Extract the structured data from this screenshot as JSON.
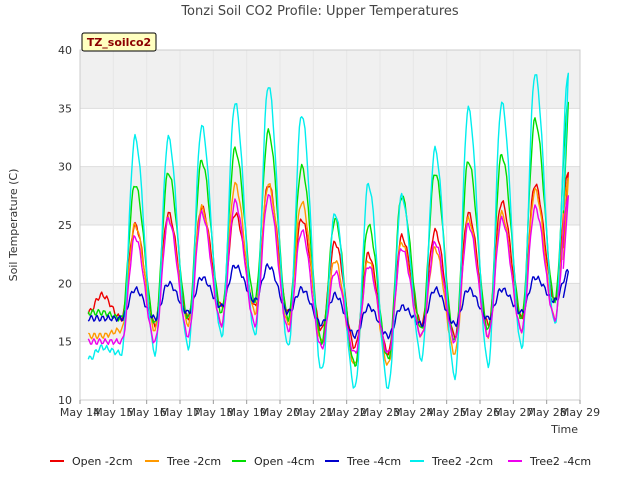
{
  "chart_data": {
    "type": "line",
    "title": "Tonzi Soil CO2 Profile: Upper Temperatures",
    "xlabel": "Time",
    "ylabel": "Soil Temperature (C)",
    "site_tag": "TZ_soilco2",
    "xlim": [
      14,
      29
    ],
    "ylim": [
      10,
      40
    ],
    "yticks": [
      10,
      15,
      20,
      25,
      30,
      35,
      40
    ],
    "xticks": [
      {
        "x": 14,
        "label": "May 14"
      },
      {
        "x": 15,
        "label": "May 15"
      },
      {
        "x": 16,
        "label": "May 16"
      },
      {
        "x": 17,
        "label": "May 17"
      },
      {
        "x": 18,
        "label": "May 18"
      },
      {
        "x": 19,
        "label": "May 19"
      },
      {
        "x": 20,
        "label": "May 20"
      },
      {
        "x": 21,
        "label": "May 21"
      },
      {
        "x": 22,
        "label": "May 22"
      },
      {
        "x": 23,
        "label": "May 23"
      },
      {
        "x": 24,
        "label": "May 24"
      },
      {
        "x": 25,
        "label": "May 25"
      },
      {
        "x": 26,
        "label": "May 26"
      },
      {
        "x": 27,
        "label": "May 27"
      },
      {
        "x": 28,
        "label": "May 28"
      },
      {
        "x": 29,
        "label": "May 29"
      }
    ],
    "grid": true,
    "legend_position": "bottom",
    "series": [
      {
        "name": "Open -2cm",
        "color": "#ee0000",
        "days": [
          14,
          15,
          16,
          17,
          18,
          19,
          20,
          21,
          22,
          23,
          24,
          25,
          26,
          27,
          28
        ],
        "mins": [
          17.5,
          17.0,
          16.5,
          17.0,
          18.0,
          18.0,
          17.5,
          16.0,
          14.5,
          14.0,
          16.5,
          15.5,
          16.5,
          17.0,
          18.5
        ],
        "maxs": [
          19.0,
          25.0,
          26.0,
          26.5,
          26.0,
          28.5,
          25.5,
          23.5,
          22.5,
          24.0,
          24.5,
          26.0,
          27.0,
          28.5,
          29.5
        ]
      },
      {
        "name": "Tree -2cm",
        "color": "#ff9900",
        "days": [
          14,
          15,
          16,
          17,
          18,
          19,
          20,
          21,
          22,
          23,
          24,
          25,
          26,
          27,
          28
        ],
        "mins": [
          15.5,
          16.0,
          16.0,
          16.5,
          16.5,
          17.5,
          16.5,
          15.0,
          13.0,
          13.0,
          15.5,
          14.0,
          15.5,
          16.0,
          17.0
        ],
        "maxs": [
          15.5,
          25.0,
          25.5,
          26.5,
          28.5,
          28.5,
          27.0,
          22.0,
          22.0,
          23.5,
          23.0,
          25.5,
          26.0,
          28.0,
          29.0
        ]
      },
      {
        "name": "Open -4cm",
        "color": "#00dd00",
        "days": [
          14,
          15,
          16,
          17,
          18,
          19,
          20,
          21,
          22,
          23,
          24,
          25,
          26,
          27,
          28
        ],
        "mins": [
          17.5,
          17.0,
          16.5,
          17.0,
          17.5,
          18.5,
          17.0,
          15.0,
          13.0,
          13.5,
          16.0,
          15.0,
          16.0,
          17.0,
          18.5
        ],
        "maxs": [
          17.5,
          28.5,
          29.5,
          30.5,
          31.5,
          33.0,
          30.0,
          25.5,
          25.0,
          27.5,
          29.5,
          30.5,
          31.0,
          34.0,
          35.5
        ]
      },
      {
        "name": "Tree -4cm",
        "color": "#0000cc",
        "days": [
          14,
          15,
          16,
          17,
          18,
          19,
          20,
          21,
          22,
          23,
          24,
          25,
          26,
          27,
          28
        ],
        "mins": [
          17.0,
          17.0,
          17.0,
          17.5,
          18.0,
          18.5,
          17.5,
          16.5,
          15.5,
          15.5,
          16.5,
          16.5,
          17.0,
          17.5,
          18.5
        ],
        "maxs": [
          17.0,
          19.5,
          20.0,
          20.5,
          21.5,
          21.5,
          19.5,
          19.0,
          18.0,
          18.0,
          19.5,
          19.5,
          19.5,
          20.5,
          21.0
        ]
      },
      {
        "name": "Tree2 -2cm",
        "color": "#00eeee",
        "days": [
          14,
          15,
          16,
          17,
          18,
          19,
          20,
          21,
          22,
          23,
          24,
          25,
          26,
          27,
          28
        ],
        "mins": [
          13.5,
          14.0,
          14.0,
          14.5,
          15.5,
          15.5,
          14.5,
          12.5,
          11.0,
          11.0,
          13.5,
          12.0,
          13.0,
          14.5,
          16.5
        ],
        "maxs": [
          14.5,
          32.5,
          32.5,
          33.5,
          35.5,
          37.0,
          34.5,
          26.0,
          28.5,
          27.5,
          31.5,
          35.0,
          35.5,
          38.0,
          38.0
        ]
      },
      {
        "name": "Tree2 -4cm",
        "color": "#ee00ee",
        "days": [
          14,
          15,
          16,
          17,
          18,
          19,
          20,
          21,
          22,
          23,
          24,
          25,
          26,
          27,
          28
        ],
        "mins": [
          15.0,
          15.0,
          15.0,
          15.5,
          16.5,
          16.5,
          16.0,
          14.5,
          14.0,
          14.0,
          15.5,
          15.0,
          15.5,
          16.0,
          17.0
        ],
        "maxs": [
          15.0,
          24.0,
          25.5,
          26.0,
          27.0,
          27.5,
          24.5,
          21.0,
          21.5,
          23.0,
          23.5,
          25.0,
          25.5,
          26.5,
          27.5
        ]
      }
    ]
  }
}
